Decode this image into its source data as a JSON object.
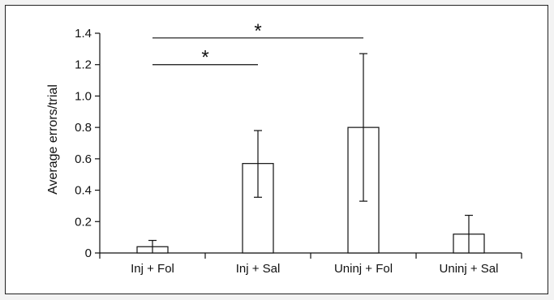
{
  "chart_data": {
    "type": "bar",
    "title": "",
    "xlabel": "",
    "ylabel": "Average errors/trial",
    "ylim": [
      0,
      1.4
    ],
    "yticks": [
      0,
      0.2,
      0.4,
      0.6,
      0.8,
      1.0,
      1.2,
      1.4
    ],
    "ytick_labels": [
      "0",
      "0.2",
      "0.4",
      "0.6",
      "0.8",
      "1.0",
      "1.2",
      "1.4"
    ],
    "categories": [
      "Inj + Fol",
      "Inj + Sal",
      "Uninj + Fol",
      "Uninj + Sal"
    ],
    "values": [
      0.04,
      0.57,
      0.8,
      0.12
    ],
    "error": [
      {
        "low": 0.0,
        "high": 0.08
      },
      {
        "low": 0.355,
        "high": 0.78
      },
      {
        "low": 0.33,
        "high": 1.27
      },
      {
        "low": 0.0,
        "high": 0.24
      }
    ],
    "significance": [
      {
        "from": "Inj + Fol",
        "to": "Inj + Sal",
        "y": 1.2,
        "label": "*"
      },
      {
        "from": "Inj + Fol",
        "to": "Uninj + Fol",
        "y": 1.37,
        "label": "*"
      }
    ],
    "grid": false,
    "legend": "none",
    "colors": {
      "bar_fill": "#ffffff",
      "stroke": "#111111"
    }
  }
}
